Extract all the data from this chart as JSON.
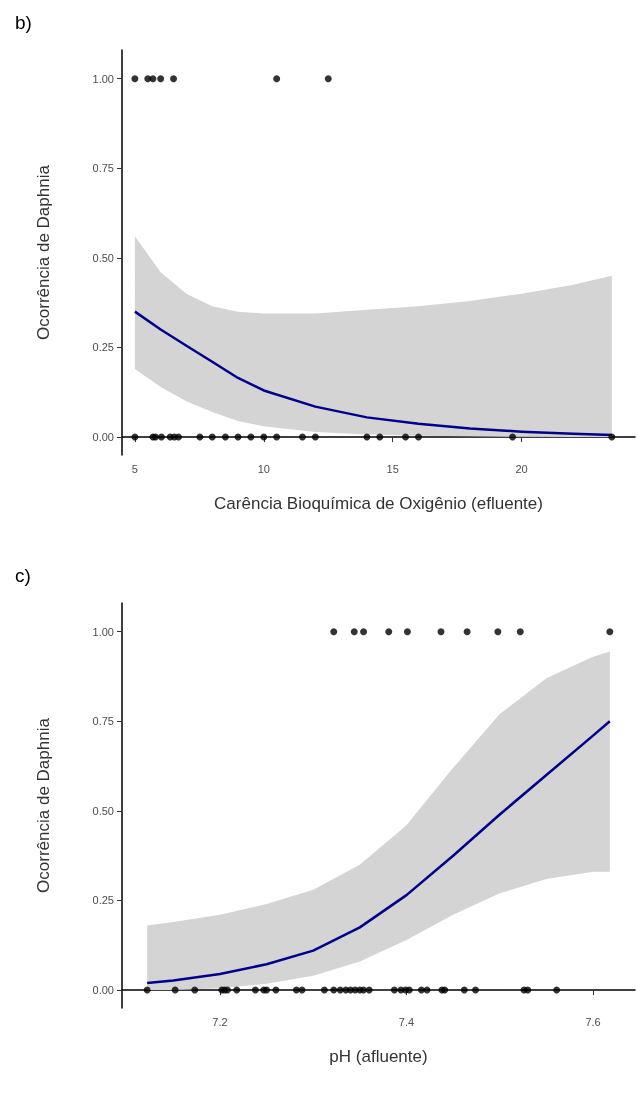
{
  "chart_data": [
    {
      "type": "scatter",
      "title": "b)",
      "xlabel": "Carência Bioquímica de Oxigênio (efluente)",
      "ylabel": "Ocorrência de Daphnia",
      "xlim": [
        4.5,
        24.4
      ],
      "xticks": [
        5,
        10,
        15,
        20
      ],
      "ylim": [
        -0.05,
        1.08
      ],
      "yticks": [
        {
          "value": 0,
          "label": "0.00"
        },
        {
          "value": 0.25,
          "label": "0.25"
        },
        {
          "value": 0.5,
          "label": "0.50"
        },
        {
          "value": 0.75,
          "label": "0.75"
        },
        {
          "value": 1,
          "label": "1.00"
        }
      ],
      "line_style": "solid",
      "series": [
        {
          "marker": "circle",
          "color": "#000000",
          "x": [
            5,
            5.5,
            5.7,
            6.0,
            6.5,
            10.5,
            12.5,
            5,
            5.7,
            5.8,
            6.03,
            6.37,
            6.53,
            6.69,
            7.52,
            8.0,
            8.51,
            9.0,
            9.5,
            10.0,
            10.5,
            11.5,
            12.0,
            14.0,
            14.5,
            15.5,
            16.0,
            19.65,
            23.5
          ],
          "values": [
            1,
            1,
            1,
            1,
            1,
            1,
            1,
            0,
            0,
            0,
            0,
            0,
            0,
            0,
            0,
            0,
            0,
            0,
            0,
            0,
            0,
            0,
            0,
            0,
            0,
            0,
            0,
            0,
            0
          ]
        },
        {
          "type": "line",
          "marker": "none",
          "color": "#00008b",
          "x": [
            5,
            6,
            7,
            8,
            9,
            10,
            12,
            14,
            16,
            18,
            20,
            22,
            23.5
          ],
          "values": [
            0.35,
            0.3,
            0.255,
            0.21,
            0.165,
            0.13,
            0.085,
            0.055,
            0.037,
            0.024,
            0.015,
            0.009,
            0.006
          ],
          "lower": [
            0.19,
            0.14,
            0.1,
            0.07,
            0.045,
            0.03,
            0.014,
            0.007,
            0.004,
            0.002,
            0.001,
            0,
            0
          ],
          "upper": [
            0.56,
            0.46,
            0.4,
            0.365,
            0.35,
            0.345,
            0.345,
            0.355,
            0.365,
            0.38,
            0.4,
            0.425,
            0.45
          ]
        }
      ]
    },
    {
      "type": "scatter",
      "title": "c)",
      "xlabel": "pH (afluente)",
      "ylabel": "Ocorrência de Daphnia",
      "xlim": [
        7.095,
        7.645
      ],
      "xticks": [
        7.2,
        7.4,
        7.6
      ],
      "ylim": [
        -0.05,
        1.08
      ],
      "yticks": [
        {
          "value": 0,
          "label": "0.00"
        },
        {
          "value": 0.25,
          "label": "0.25"
        },
        {
          "value": 0.5,
          "label": "0.50"
        },
        {
          "value": 0.75,
          "label": "0.75"
        },
        {
          "value": 1,
          "label": "1.00"
        }
      ],
      "line_style": "solid",
      "series": [
        {
          "marker": "circle",
          "color": "#000000",
          "x": [
            7.322,
            7.344,
            7.354,
            7.381,
            7.401,
            7.437,
            7.465,
            7.498,
            7.522,
            7.618,
            7.122,
            7.152,
            7.173,
            7.202,
            7.205,
            7.208,
            7.218,
            7.238,
            7.247,
            7.25,
            7.26,
            7.282,
            7.288,
            7.312,
            7.322,
            7.329,
            7.335,
            7.34,
            7.345,
            7.35,
            7.354,
            7.36,
            7.387,
            7.394,
            7.399,
            7.403,
            7.416,
            7.422,
            7.438,
            7.441,
            7.462,
            7.474,
            7.526,
            7.53,
            7.561
          ],
          "values": [
            1,
            1,
            1,
            1,
            1,
            1,
            1,
            1,
            1,
            1,
            0,
            0,
            0,
            0,
            0,
            0,
            0,
            0,
            0,
            0,
            0,
            0,
            0,
            0,
            0,
            0,
            0,
            0,
            0,
            0,
            0,
            0,
            0,
            0,
            0,
            0,
            0,
            0,
            0,
            0,
            0,
            0,
            0,
            0,
            0
          ]
        },
        {
          "type": "line",
          "marker": "none",
          "color": "#00008b",
          "x": [
            7.122,
            7.15,
            7.2,
            7.25,
            7.3,
            7.35,
            7.4,
            7.45,
            7.5,
            7.55,
            7.6,
            7.618
          ],
          "values": [
            0.02,
            0.027,
            0.045,
            0.072,
            0.11,
            0.175,
            0.265,
            0.375,
            0.49,
            0.6,
            0.71,
            0.75
          ],
          "lower": [
            0,
            0,
            0.005,
            0.018,
            0.04,
            0.08,
            0.14,
            0.21,
            0.27,
            0.31,
            0.33,
            0.33
          ],
          "upper": [
            0.18,
            0.19,
            0.21,
            0.24,
            0.28,
            0.35,
            0.46,
            0.62,
            0.77,
            0.87,
            0.93,
            0.945
          ]
        }
      ]
    }
  ]
}
